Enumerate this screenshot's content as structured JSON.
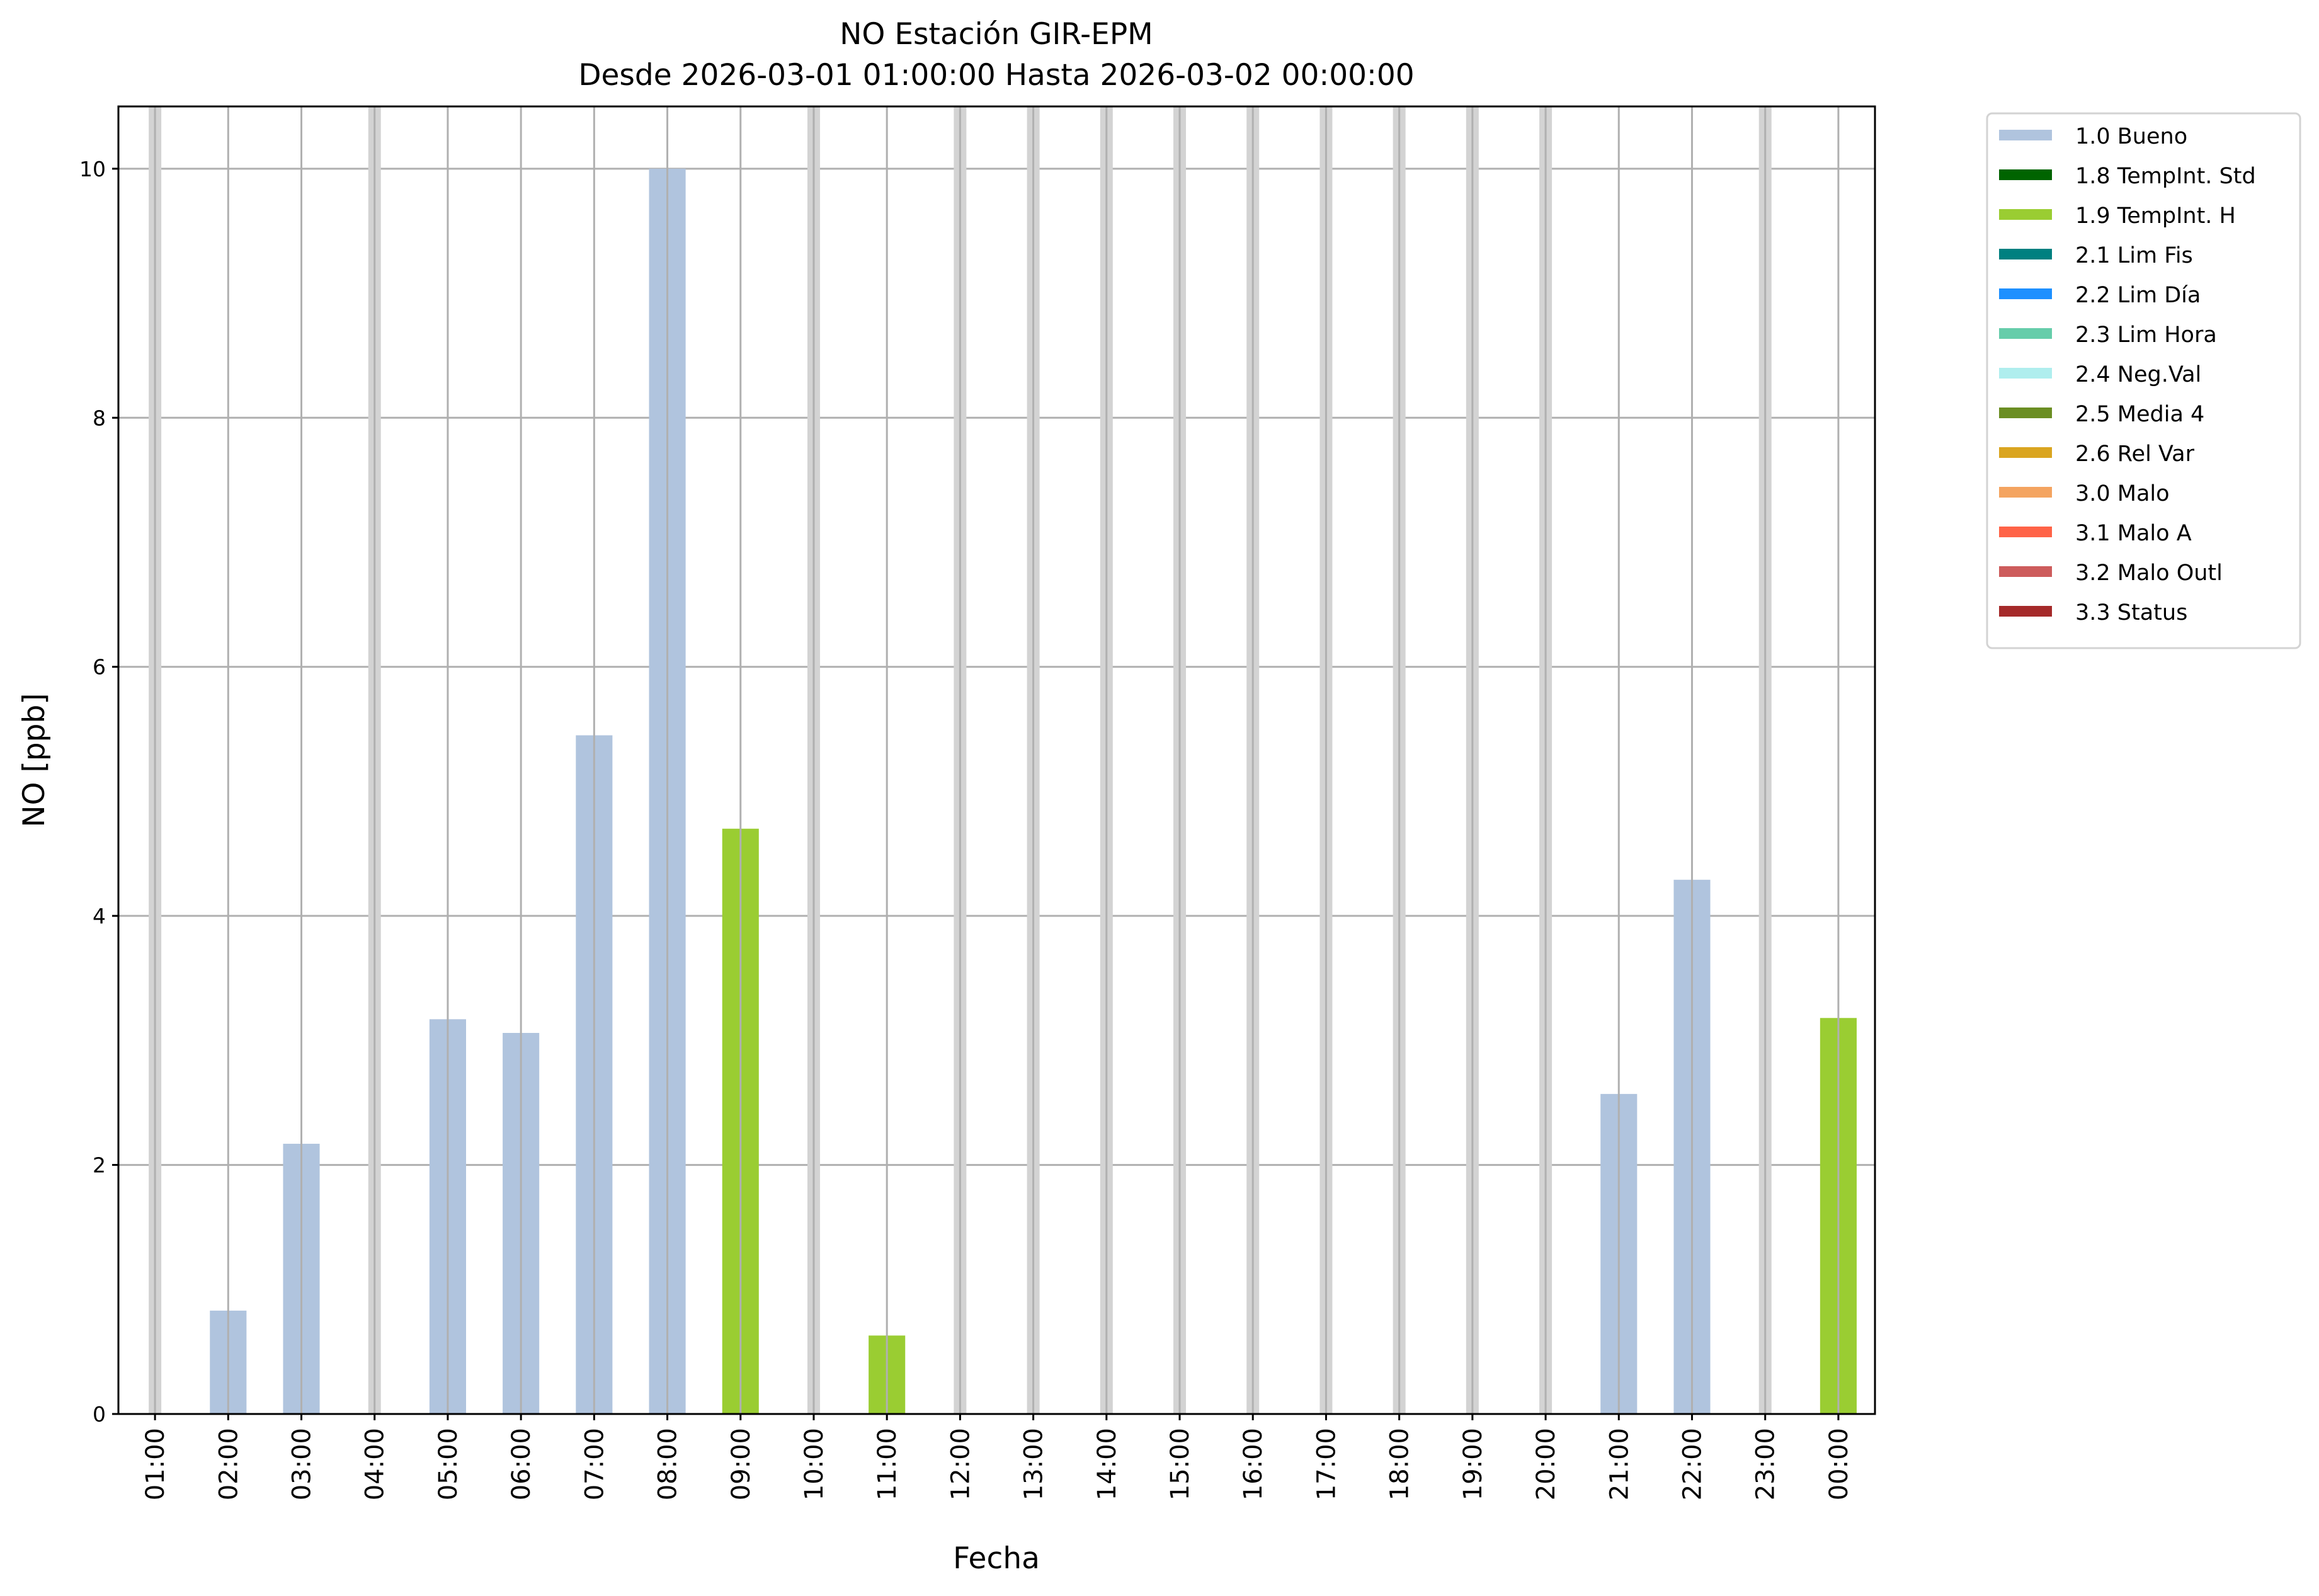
{
  "chart_data": {
    "type": "bar",
    "title": "NO Estación GIR-EPM",
    "subtitle": "Desde 2026-03-01 01:00:00 Hasta 2026-03-02 00:00:00",
    "xlabel": "Fecha",
    "ylabel": "NO [ppb]",
    "ylim": [
      0,
      10.5
    ],
    "yticks": [
      "0",
      "2",
      "4",
      "6",
      "8",
      "10"
    ],
    "grid": true,
    "legend_position": "outside-right-top",
    "categories": [
      "01:00",
      "02:00",
      "03:00",
      "04:00",
      "05:00",
      "06:00",
      "07:00",
      "08:00",
      "09:00",
      "10:00",
      "11:00",
      "12:00",
      "13:00",
      "14:00",
      "15:00",
      "16:00",
      "17:00",
      "18:00",
      "19:00",
      "20:00",
      "21:00",
      "22:00",
      "23:00",
      "00:00"
    ],
    "values": [
      null,
      0.83,
      2.17,
      null,
      3.17,
      3.06,
      5.45,
      10.0,
      4.7,
      null,
      0.63,
      null,
      null,
      null,
      null,
      null,
      null,
      null,
      null,
      null,
      2.57,
      4.29,
      null,
      3.18
    ],
    "flags": [
      null,
      "1.0 Bueno",
      "1.0 Bueno",
      null,
      "1.0 Bueno",
      "1.0 Bueno",
      "1.0 Bueno",
      "1.0 Bueno",
      "1.9 TempInt. H",
      null,
      "1.9 TempInt. H",
      null,
      null,
      null,
      null,
      null,
      null,
      null,
      null,
      null,
      "1.0 Bueno",
      "1.0 Bueno",
      null,
      "1.9 TempInt. H"
    ],
    "missing_color": "#d3d3d3",
    "legend": [
      {
        "label": "1.0 Bueno",
        "color": "#b0c4de"
      },
      {
        "label": "1.8 TempInt. Std",
        "color": "#006400"
      },
      {
        "label": "1.9 TempInt. H",
        "color": "#9acd32"
      },
      {
        "label": "2.1 Lim Fis",
        "color": "#008080"
      },
      {
        "label": "2.2 Lim Día",
        "color": "#1e90ff"
      },
      {
        "label": "2.3 Lim Hora",
        "color": "#66cdaa"
      },
      {
        "label": "2.4 Neg.Val",
        "color": "#afeeee"
      },
      {
        "label": "2.5 Media 4",
        "color": "#6b8e23"
      },
      {
        "label": "2.6 Rel Var",
        "color": "#daa520"
      },
      {
        "label": "3.0 Malo",
        "color": "#f4a460"
      },
      {
        "label": "3.1 Malo A",
        "color": "#ff6347"
      },
      {
        "label": "3.2 Malo Outl",
        "color": "#cd5c5c"
      },
      {
        "label": "3.3 Status",
        "color": "#a52a2a"
      }
    ]
  }
}
